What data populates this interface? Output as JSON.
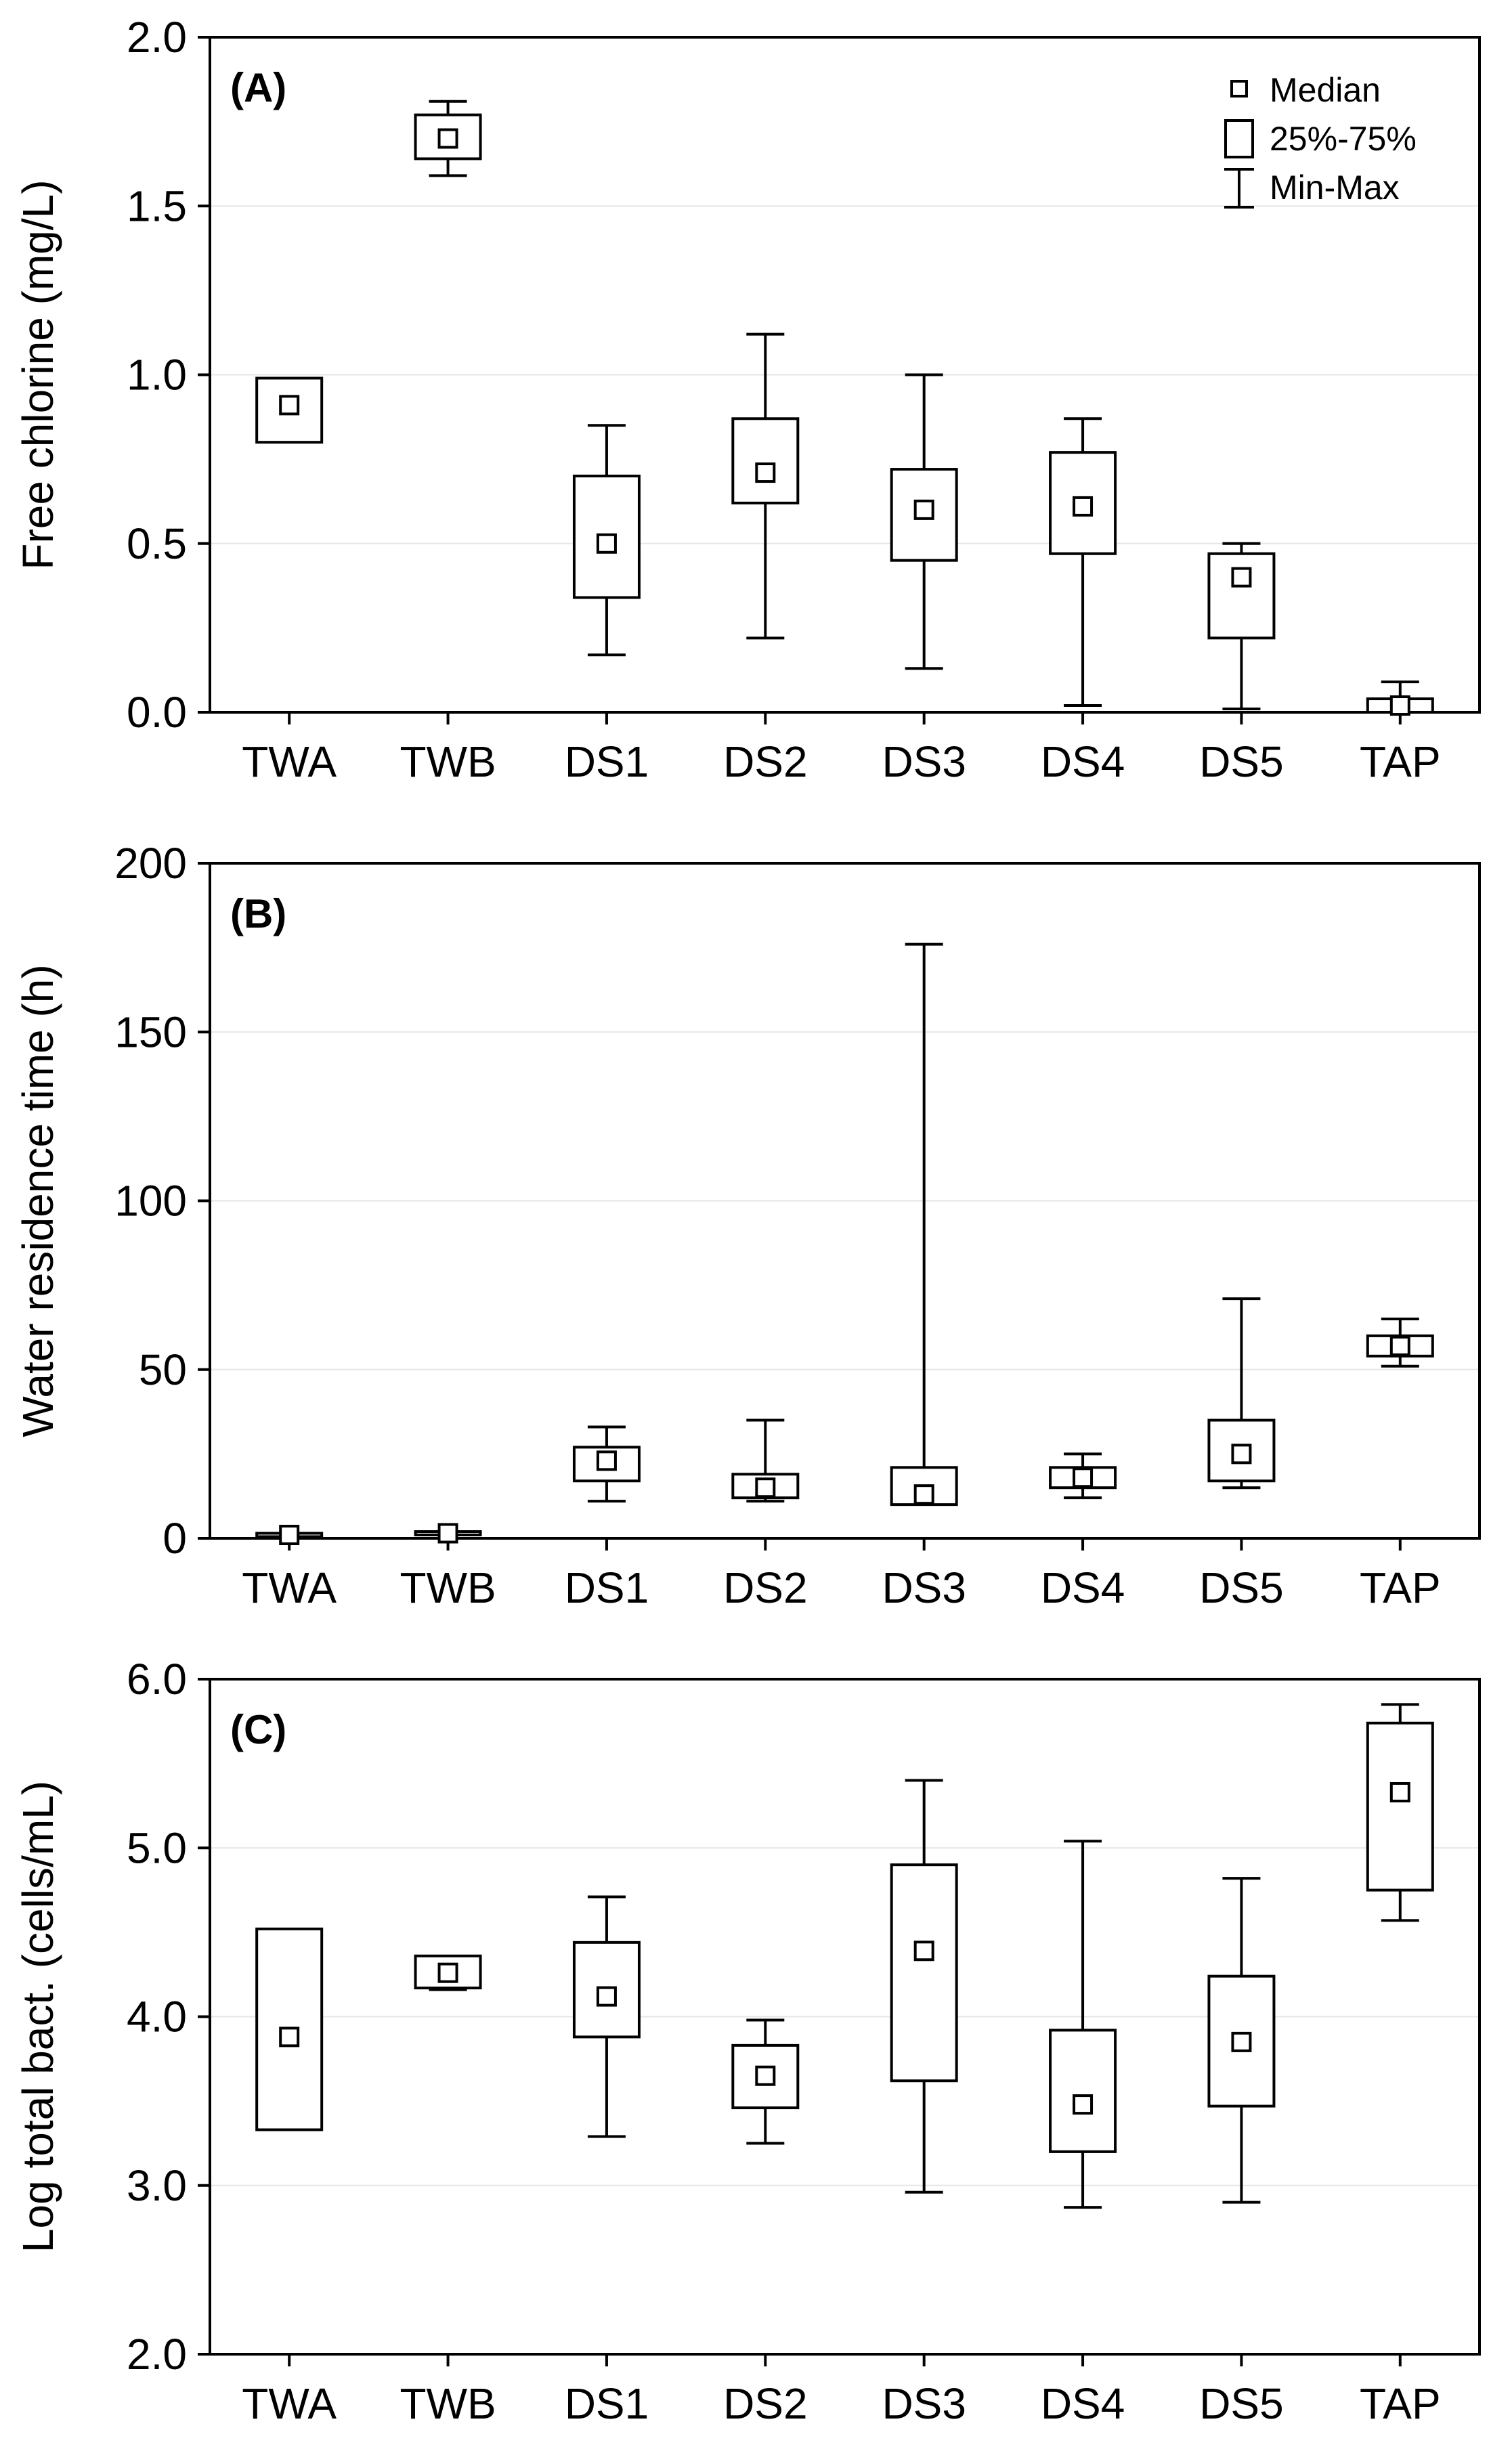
{
  "chart_data": [
    {
      "type": "box",
      "panel_label": "(A)",
      "ylabel": "Free chlorine (mg/L)",
      "ylim": [
        0,
        2
      ],
      "yticks": [
        "0.0",
        "0.5",
        "1.0",
        "1.5",
        "2.0"
      ],
      "ytick_values": [
        0,
        0.5,
        1.0,
        1.5,
        2.0
      ],
      "categories": [
        "TWA",
        "TWB",
        "DS1",
        "DS2",
        "DS3",
        "DS4",
        "DS5",
        "TAP"
      ],
      "grid": true,
      "legend": {
        "position": "top-right",
        "entries": [
          "Median",
          "25%-75%",
          "Min-Max"
        ]
      },
      "series": [
        {
          "name": "TWA",
          "min": 0.8,
          "q1": 0.8,
          "median": 0.91,
          "q3": 0.99,
          "max": 0.99
        },
        {
          "name": "TWB",
          "min": 1.59,
          "q1": 1.64,
          "median": 1.7,
          "q3": 1.77,
          "max": 1.81
        },
        {
          "name": "DS1",
          "min": 0.17,
          "q1": 0.34,
          "median": 0.5,
          "q3": 0.7,
          "max": 0.85
        },
        {
          "name": "DS2",
          "min": 0.22,
          "q1": 0.62,
          "median": 0.71,
          "q3": 0.87,
          "max": 1.12
        },
        {
          "name": "DS3",
          "min": 0.13,
          "q1": 0.45,
          "median": 0.6,
          "q3": 0.72,
          "max": 1.0
        },
        {
          "name": "DS4",
          "min": 0.02,
          "q1": 0.47,
          "median": 0.61,
          "q3": 0.77,
          "max": 0.87
        },
        {
          "name": "DS5",
          "min": 0.01,
          "q1": 0.22,
          "median": 0.4,
          "q3": 0.47,
          "max": 0.5
        },
        {
          "name": "TAP",
          "min": 0.0,
          "q1": 0.0,
          "median": 0.02,
          "q3": 0.04,
          "max": 0.09
        }
      ]
    },
    {
      "type": "box",
      "panel_label": "(B)",
      "ylabel": "Water residence time (h)",
      "ylim": [
        0,
        200
      ],
      "yticks": [
        "0",
        "50",
        "100",
        "150",
        "200"
      ],
      "ytick_values": [
        0,
        50,
        100,
        150,
        200
      ],
      "categories": [
        "TWA",
        "TWB",
        "DS1",
        "DS2",
        "DS3",
        "DS4",
        "DS5",
        "TAP"
      ],
      "grid": true,
      "series": [
        {
          "name": "TWA",
          "min": 0.5,
          "q1": 0.5,
          "median": 1.0,
          "q3": 1.5,
          "max": 1.5
        },
        {
          "name": "TWB",
          "min": 1.0,
          "q1": 1.0,
          "median": 1.5,
          "q3": 2.0,
          "max": 2.0
        },
        {
          "name": "DS1",
          "min": 11,
          "q1": 17,
          "median": 23,
          "q3": 27,
          "max": 33
        },
        {
          "name": "DS2",
          "min": 11,
          "q1": 12,
          "median": 15,
          "q3": 19,
          "max": 35
        },
        {
          "name": "DS3",
          "min": 10,
          "q1": 10,
          "median": 13,
          "q3": 21,
          "max": 176
        },
        {
          "name": "DS4",
          "min": 12,
          "q1": 15,
          "median": 18,
          "q3": 21,
          "max": 25
        },
        {
          "name": "DS5",
          "min": 15,
          "q1": 17,
          "median": 25,
          "q3": 35,
          "max": 71
        },
        {
          "name": "TAP",
          "min": 51,
          "q1": 54,
          "median": 57,
          "q3": 60,
          "max": 65
        }
      ]
    },
    {
      "type": "box",
      "panel_label": "(C)",
      "ylabel": "Log total bact. (cells/mL)",
      "ylim": [
        2,
        6
      ],
      "yticks": [
        "2.0",
        "3.0",
        "4.0",
        "5.0",
        "6.0"
      ],
      "ytick_values": [
        2.0,
        3.0,
        4.0,
        5.0,
        6.0
      ],
      "categories": [
        "TWA",
        "TWB",
        "DS1",
        "DS2",
        "DS3",
        "DS4",
        "DS5",
        "TAP"
      ],
      "grid": true,
      "series": [
        {
          "name": "TWA",
          "min": 3.33,
          "q1": 3.33,
          "median": 3.88,
          "q3": 4.52,
          "max": 4.52
        },
        {
          "name": "TWB",
          "min": 4.16,
          "q1": 4.17,
          "median": 4.26,
          "q3": 4.36,
          "max": 4.36
        },
        {
          "name": "DS1",
          "min": 3.29,
          "q1": 3.88,
          "median": 4.12,
          "q3": 4.44,
          "max": 4.71
        },
        {
          "name": "DS2",
          "min": 3.25,
          "q1": 3.46,
          "median": 3.65,
          "q3": 3.83,
          "max": 3.98
        },
        {
          "name": "DS3",
          "min": 2.96,
          "q1": 3.62,
          "median": 4.39,
          "q3": 4.9,
          "max": 5.4
        },
        {
          "name": "DS4",
          "min": 2.87,
          "q1": 3.2,
          "median": 3.48,
          "q3": 3.92,
          "max": 5.04
        },
        {
          "name": "DS5",
          "min": 2.9,
          "q1": 3.47,
          "median": 3.85,
          "q3": 4.24,
          "max": 4.82
        },
        {
          "name": "TAP",
          "min": 4.57,
          "q1": 4.75,
          "median": 5.33,
          "q3": 5.74,
          "max": 5.85
        }
      ]
    }
  ]
}
